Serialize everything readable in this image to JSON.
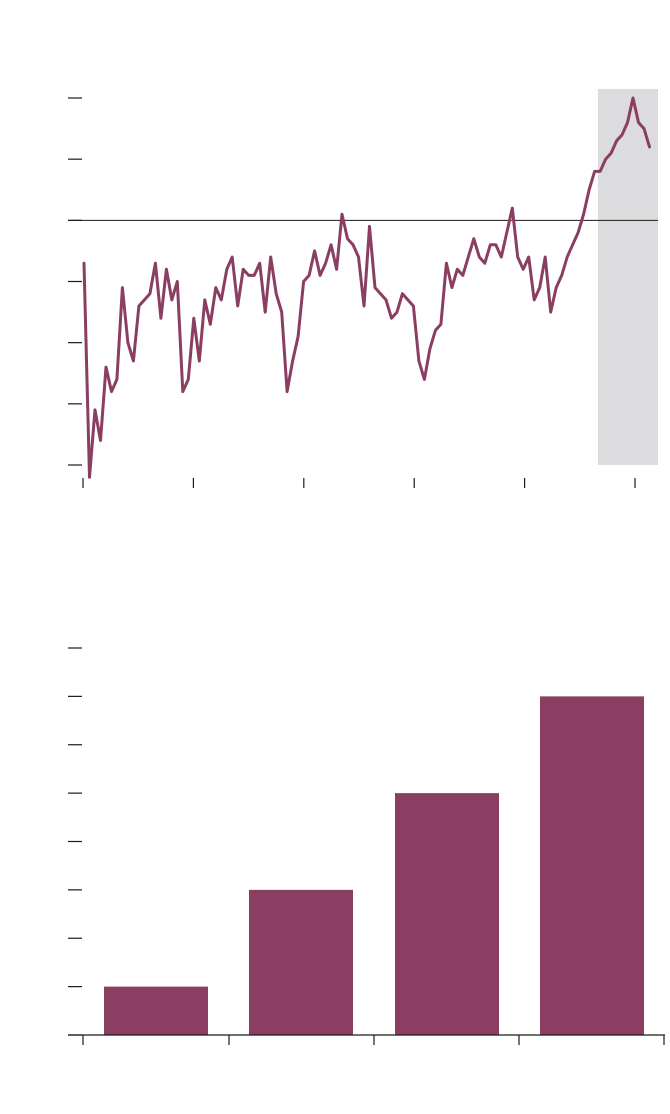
{
  "colors": {
    "series": "#8a3e62",
    "axis": "#1a1a1a",
    "shade": "#dcdcde",
    "background": "#ffffff"
  },
  "chart_data": [
    {
      "type": "line",
      "title": "",
      "xlabel": "",
      "ylabel": "",
      "xlim": [
        0,
        52
      ],
      "ylim": [
        -4,
        2
      ],
      "ytick_count": 7,
      "xtick_count": 6,
      "reference_line_y": 0,
      "shaded_region": [
        46.8,
        52
      ],
      "grid": false,
      "legend": "none",
      "series": [
        {
          "x": [
            0,
            0.5,
            1,
            1.5,
            2,
            2.5,
            3,
            3.5,
            4,
            4.5,
            5,
            5.5,
            6,
            6.5,
            7,
            7.5,
            8,
            8.5,
            9,
            9.5,
            10,
            10.5,
            11,
            11.5,
            12,
            12.5,
            13,
            13.5,
            14,
            14.5,
            15,
            15.5,
            16,
            16.5,
            17,
            17.5,
            18,
            18.5,
            19,
            19.5,
            20,
            20.5,
            21,
            21.5,
            22,
            22.5,
            23,
            23.5,
            24,
            24.5,
            25,
            25.5,
            26,
            26.5,
            27,
            27.5,
            28,
            28.5,
            29,
            29.5,
            30,
            30.5,
            31,
            31.5,
            32,
            32.5,
            33,
            33.5,
            34,
            34.5,
            35,
            35.5,
            36,
            36.5,
            37,
            37.5,
            38,
            38.5,
            39,
            39.5,
            40,
            40.5,
            41,
            41.5,
            42,
            42.5,
            43,
            43.5,
            44,
            44.5,
            45,
            45.5,
            46,
            46.5,
            47,
            47.5,
            48,
            48.5,
            49,
            49.5,
            50,
            50.5,
            51,
            51.5
          ],
          "values": [
            -0.7,
            -4.2,
            -3.1,
            -3.6,
            -2.4,
            -2.8,
            -2.6,
            -1.1,
            -2,
            -2.3,
            -1.4,
            -1.3,
            -1.2,
            -0.7,
            -1.6,
            -0.8,
            -1.3,
            -1,
            -2.8,
            -2.6,
            -1.6,
            -2.3,
            -1.3,
            -1.7,
            -1.1,
            -1.3,
            -0.8,
            -0.6,
            -1.4,
            -0.8,
            -0.9,
            -0.9,
            -0.7,
            -1.5,
            -0.6,
            -1.2,
            -1.5,
            -2.8,
            -2.3,
            -1.9,
            -1,
            -0.9,
            -0.5,
            -0.9,
            -0.7,
            -0.4,
            -0.8,
            0.1,
            -0.3,
            -0.4,
            -0.6,
            -1.4,
            -0.1,
            -1.1,
            -1.2,
            -1.3,
            -1.6,
            -1.5,
            -1.2,
            -1.3,
            -1.4,
            -2.3,
            -2.6,
            -2.1,
            -1.8,
            -1.7,
            -0.7,
            -1.1,
            -0.8,
            -0.9,
            -0.6,
            -0.3,
            -0.6,
            -0.7,
            -0.4,
            -0.4,
            -0.6,
            -0.2,
            0.2,
            -0.6,
            -0.8,
            -0.6,
            -1.3,
            -1.1,
            -0.6,
            -1.5,
            -1.1,
            -0.9,
            -0.6,
            -0.4,
            -0.2,
            0.1,
            0.5,
            0.8,
            0.8,
            1,
            1.1,
            1.3,
            1.4,
            1.6,
            2,
            1.6,
            1.5,
            1.2
          ]
        }
      ]
    },
    {
      "type": "bar",
      "title": "",
      "xlabel": "",
      "ylabel": "",
      "categories": [
        "",
        "",
        "",
        ""
      ],
      "values": [
        1,
        3,
        5,
        7
      ],
      "ylim": [
        0,
        8
      ],
      "ytick_count": 9,
      "grid": false,
      "legend": "none"
    }
  ]
}
